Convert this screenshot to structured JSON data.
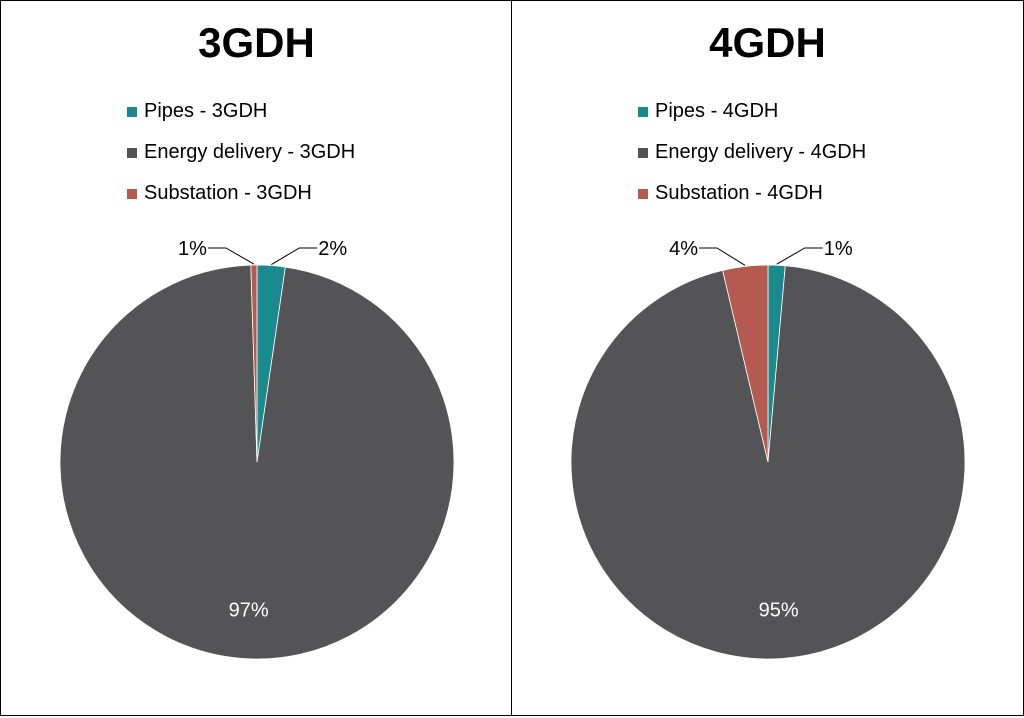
{
  "chart_data": [
    {
      "type": "pie",
      "title": "3GDH",
      "categories": [
        "Pipes - 3GDH",
        "Energy delivery - 3GDH",
        "Substation - 3GDH"
      ],
      "values": [
        2.3,
        97.2,
        0.5
      ],
      "labels": [
        "2%",
        "97%",
        "1%"
      ],
      "colors": [
        "#1a8a8e",
        "#545457",
        "#b55a50"
      ],
      "legend": "top"
    },
    {
      "type": "pie",
      "title": "4GDH",
      "categories": [
        "Pipes - 4GDH",
        "Energy delivery - 4GDH",
        "Substation - 4GDH"
      ],
      "values": [
        1.4,
        94.9,
        3.7
      ],
      "labels": [
        "1%",
        "95%",
        "4%"
      ],
      "colors": [
        "#1a8a8e",
        "#545457",
        "#b55a50"
      ],
      "legend": "top"
    }
  ]
}
